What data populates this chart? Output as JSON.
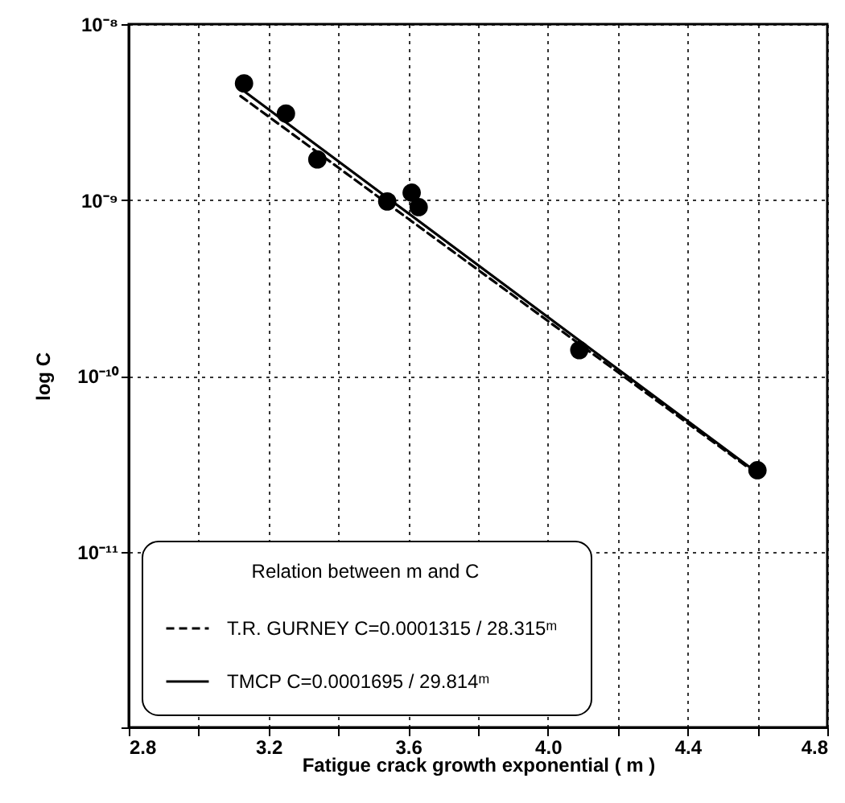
{
  "chart_data": {
    "type": "scatter",
    "xlabel": "Fatigue crack growth exponential ( m )",
    "ylabel": "log C",
    "legend_title": "Relation between m and C",
    "xlim": [
      2.8,
      4.8
    ],
    "xticks": [
      2.8,
      {
        "value": 3.0,
        "label": null
      },
      3.2,
      {
        "value": 3.4,
        "label": null
      },
      3.6,
      {
        "value": 3.8,
        "label": null
      },
      {
        "value": 4.0,
        "label": "4.0"
      },
      {
        "value": 4.2,
        "label": null
      },
      4.4,
      {
        "value": 4.6,
        "label": null
      },
      4.8
    ],
    "ylim": [
      1e-12,
      1e-08
    ],
    "yticks": [
      {
        "value": 1e-12,
        "label": null
      },
      {
        "value": 1e-11,
        "label": "10⁻¹¹"
      },
      {
        "value": 1e-10,
        "label": "10⁻¹⁰"
      },
      {
        "value": 1e-09,
        "label": "10⁻⁹"
      },
      {
        "value": 1e-08,
        "label": "10⁻⁸"
      }
    ],
    "log": "y",
    "grid": true,
    "legend": "bottom left",
    "series": [
      {
        "marker": "circle",
        "color": "#000000",
        "x": [
          3.13,
          3.25,
          3.34,
          3.54,
          3.61,
          3.63,
          4.09,
          4.6
        ],
        "values": [
          4.6e-09,
          3.1e-09,
          1.7e-09,
          9.8e-10,
          1.1e-09,
          9.1e-10,
          1.4e-10,
          2.9e-11
        ]
      },
      {
        "type": "line",
        "name": "T.R. GURNEY   C=0.0001315 / 28.315ᵐ",
        "line_style": "dashed",
        "color": "#000000",
        "x": [
          3.12,
          4.6
        ],
        "values": [
          3.9e-09,
          2.75e-11
        ]
      },
      {
        "type": "line",
        "name": "TMCP               C=0.0001695 / 29.814ᵐ",
        "line_style": "solid",
        "color": "#000000",
        "x": [
          3.12,
          4.6
        ],
        "values": [
          4.3e-09,
          2.8e-11
        ]
      }
    ]
  }
}
